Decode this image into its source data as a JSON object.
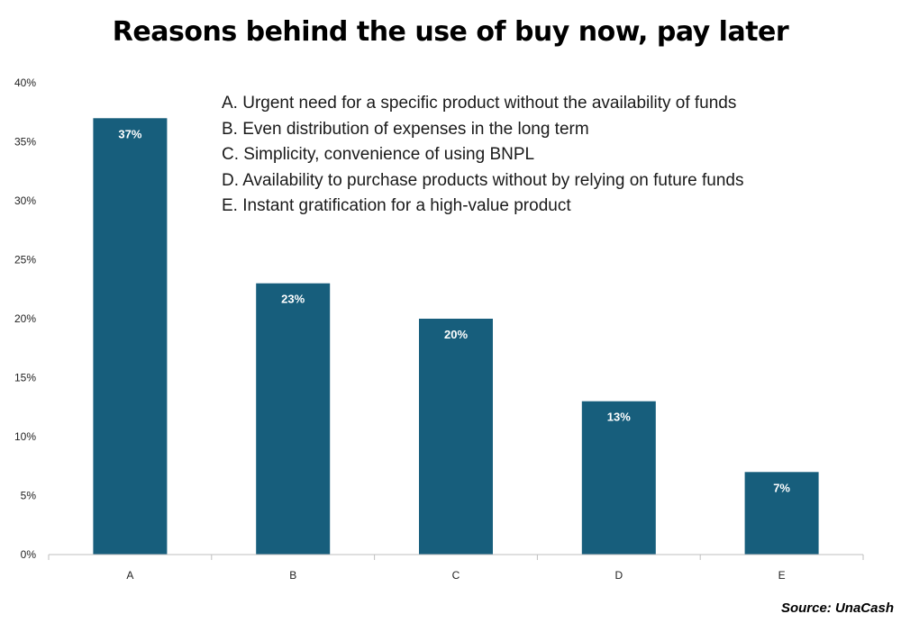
{
  "chart_data": {
    "type": "bar",
    "title": "Reasons behind the use of buy now, pay later",
    "categories": [
      "A",
      "B",
      "C",
      "D",
      "E"
    ],
    "values": [
      37,
      23,
      20,
      13,
      7
    ],
    "data_labels": [
      "37%",
      "23%",
      "20%",
      "13%",
      "7%"
    ],
    "ylim": [
      0,
      40
    ],
    "yticks": [
      0,
      5,
      10,
      15,
      20,
      25,
      30,
      35,
      40
    ],
    "ytick_labels": [
      "0%",
      "5%",
      "10%",
      "15%",
      "20%",
      "25%",
      "30%",
      "35%",
      "40%"
    ],
    "xlabel": "",
    "ylabel": "",
    "grid": false,
    "bar_color": "#175e7c",
    "category_notes": [
      "A. Urgent need for a specific product without the availability of funds",
      "B. Even distribution of expenses in the long term",
      "C. Simplicity, convenience of using BNPL",
      "D. Availability to purchase products without by relying on future funds",
      "E. Instant gratification for a high-value product"
    ],
    "source": "Source: UnaCash"
  }
}
